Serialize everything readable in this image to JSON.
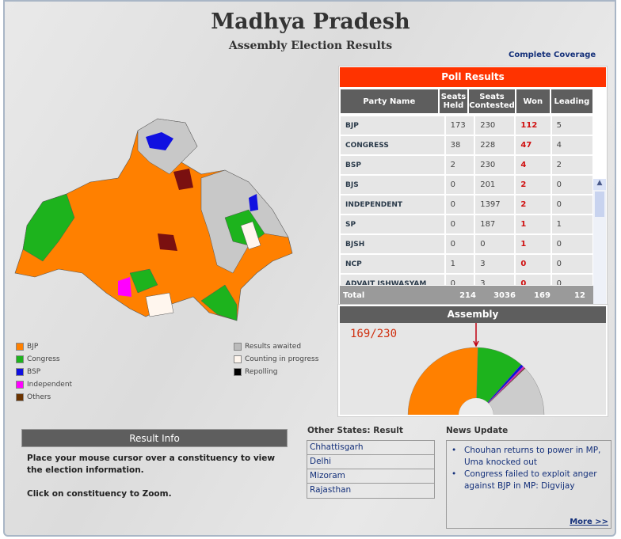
{
  "header": {
    "title": "Madhya Pradesh",
    "subtitle": "Assembly Election Results",
    "coverage_link": "Complete Coverage"
  },
  "poll": {
    "title": "Poll Results",
    "columns": [
      "Party Name",
      "Seats Held",
      "Seats Contested",
      "Won",
      "Leading"
    ],
    "rows": [
      [
        "BJP",
        "173",
        "230",
        "112",
        "5"
      ],
      [
        "CONGRESS",
        "38",
        "228",
        "47",
        "4"
      ],
      [
        "BSP",
        "2",
        "230",
        "4",
        "2"
      ],
      [
        "BJS",
        "0",
        "201",
        "2",
        "0"
      ],
      [
        "INDEPENDENT",
        "0",
        "1397",
        "2",
        "0"
      ],
      [
        "SP",
        "0",
        "187",
        "1",
        "1"
      ],
      [
        "BJSH",
        "0",
        "0",
        "1",
        "0"
      ],
      [
        "NCP",
        "1",
        "3",
        "0",
        "0"
      ],
      [
        "ADVAIT ISHWASYAM",
        "0",
        "3",
        "0",
        "0"
      ]
    ],
    "total": [
      "Total",
      "214",
      "3036",
      "169",
      "12"
    ]
  },
  "assembly": {
    "title": "Assembly",
    "ratio": "169/230",
    "segments": [
      {
        "name": "BJP",
        "seats": 117,
        "color": "#ff8000"
      },
      {
        "name": "Congress",
        "seats": 51,
        "color": "#1db31d"
      },
      {
        "name": "BSP",
        "seats": 3,
        "color": "#1010e0"
      },
      {
        "name": "Independent",
        "seats": 2,
        "color": "#e020c0"
      },
      {
        "name": "Others",
        "seats": 1,
        "color": "#7a2a10"
      },
      {
        "name": "Awaited",
        "seats": 56,
        "color": "#cccccc"
      }
    ]
  },
  "legend": {
    "left": [
      {
        "label": "BJP",
        "color": "#ff8000"
      },
      {
        "label": "Congress",
        "color": "#1db31d"
      },
      {
        "label": "BSP",
        "color": "#1010e0"
      },
      {
        "label": "Independent",
        "color": "#ff00ff"
      },
      {
        "label": "Others",
        "color": "#6b3300"
      }
    ],
    "right": [
      {
        "label": "Results awaited",
        "color": "#bbbbbb"
      },
      {
        "label": "Counting in progress",
        "color": "#fff6ee"
      },
      {
        "label": "Repolling",
        "color": "#000000"
      }
    ]
  },
  "info": {
    "title": "Result Info",
    "line1": "Place your mouse cursor over a constituency to view the election information.",
    "line2": "Click on constituency to Zoom."
  },
  "states": {
    "title": "Other States: Result",
    "items": [
      "Chhattisgarh",
      "Delhi",
      "Mizoram",
      "Rajasthan"
    ]
  },
  "news": {
    "title": "News Update",
    "items": [
      "Chouhan returns to power in MP, Uma knocked out",
      "Congress failed to exploit anger against BJP in MP: Digvijay"
    ],
    "more": "More >>"
  }
}
